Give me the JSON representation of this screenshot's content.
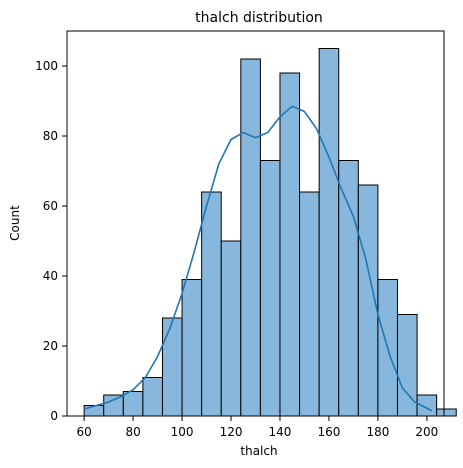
{
  "chart_data": {
    "type": "bar",
    "subtype": "histogram",
    "title": "thalch distribution",
    "xlabel": "thalch",
    "ylabel": "Count",
    "xlim": [
      53,
      207
    ],
    "ylim": [
      0,
      110
    ],
    "x_ticks": [
      60,
      80,
      100,
      120,
      140,
      160,
      180,
      200
    ],
    "y_ticks": [
      0,
      20,
      40,
      60,
      80,
      100
    ],
    "grid": false,
    "bar_color": "#87b7dc",
    "bar_edge_color": "#000000",
    "kde_color": "#1f77b4",
    "bins": [
      {
        "start": 60,
        "end": 68,
        "value": 3
      },
      {
        "start": 68,
        "end": 76,
        "value": 6
      },
      {
        "start": 76,
        "end": 84,
        "value": 7
      },
      {
        "start": 84,
        "end": 92,
        "value": 11
      },
      {
        "start": 92,
        "end": 100,
        "value": 28
      },
      {
        "start": 100,
        "end": 108,
        "value": 39
      },
      {
        "start": 108,
        "end": 116,
        "value": 64
      },
      {
        "start": 116,
        "end": 124,
        "value": 50
      },
      {
        "start": 124,
        "end": 132,
        "value": 102
      },
      {
        "start": 132,
        "end": 140,
        "value": 73
      },
      {
        "start": 140,
        "end": 148,
        "value": 98
      },
      {
        "start": 148,
        "end": 156,
        "value": 64
      },
      {
        "start": 156,
        "end": 164,
        "value": 105
      },
      {
        "start": 164,
        "end": 172,
        "value": 73
      },
      {
        "start": 172,
        "end": 180,
        "value": 66
      },
      {
        "start": 180,
        "end": 188,
        "value": 39
      },
      {
        "start": 188,
        "end": 196,
        "value": 29
      },
      {
        "start": 196,
        "end": 204,
        "value": 6
      },
      {
        "start": 204,
        "end": 212,
        "value": 2
      }
    ],
    "kde": [
      {
        "x": 60,
        "y": 2
      },
      {
        "x": 65,
        "y": 3
      },
      {
        "x": 70,
        "y": 4
      },
      {
        "x": 75,
        "y": 5.5
      },
      {
        "x": 80,
        "y": 7.5
      },
      {
        "x": 85,
        "y": 11
      },
      {
        "x": 90,
        "y": 17
      },
      {
        "x": 95,
        "y": 25
      },
      {
        "x": 100,
        "y": 35
      },
      {
        "x": 105,
        "y": 47
      },
      {
        "x": 110,
        "y": 60
      },
      {
        "x": 115,
        "y": 72
      },
      {
        "x": 120,
        "y": 79
      },
      {
        "x": 125,
        "y": 81
      },
      {
        "x": 130,
        "y": 79.5
      },
      {
        "x": 135,
        "y": 81
      },
      {
        "x": 140,
        "y": 85.5
      },
      {
        "x": 145,
        "y": 88.5
      },
      {
        "x": 150,
        "y": 87
      },
      {
        "x": 155,
        "y": 82
      },
      {
        "x": 160,
        "y": 74
      },
      {
        "x": 165,
        "y": 65
      },
      {
        "x": 170,
        "y": 57
      },
      {
        "x": 175,
        "y": 45
      },
      {
        "x": 180,
        "y": 29
      },
      {
        "x": 185,
        "y": 17
      },
      {
        "x": 190,
        "y": 8
      },
      {
        "x": 195,
        "y": 4
      },
      {
        "x": 202,
        "y": 1.5
      }
    ]
  }
}
